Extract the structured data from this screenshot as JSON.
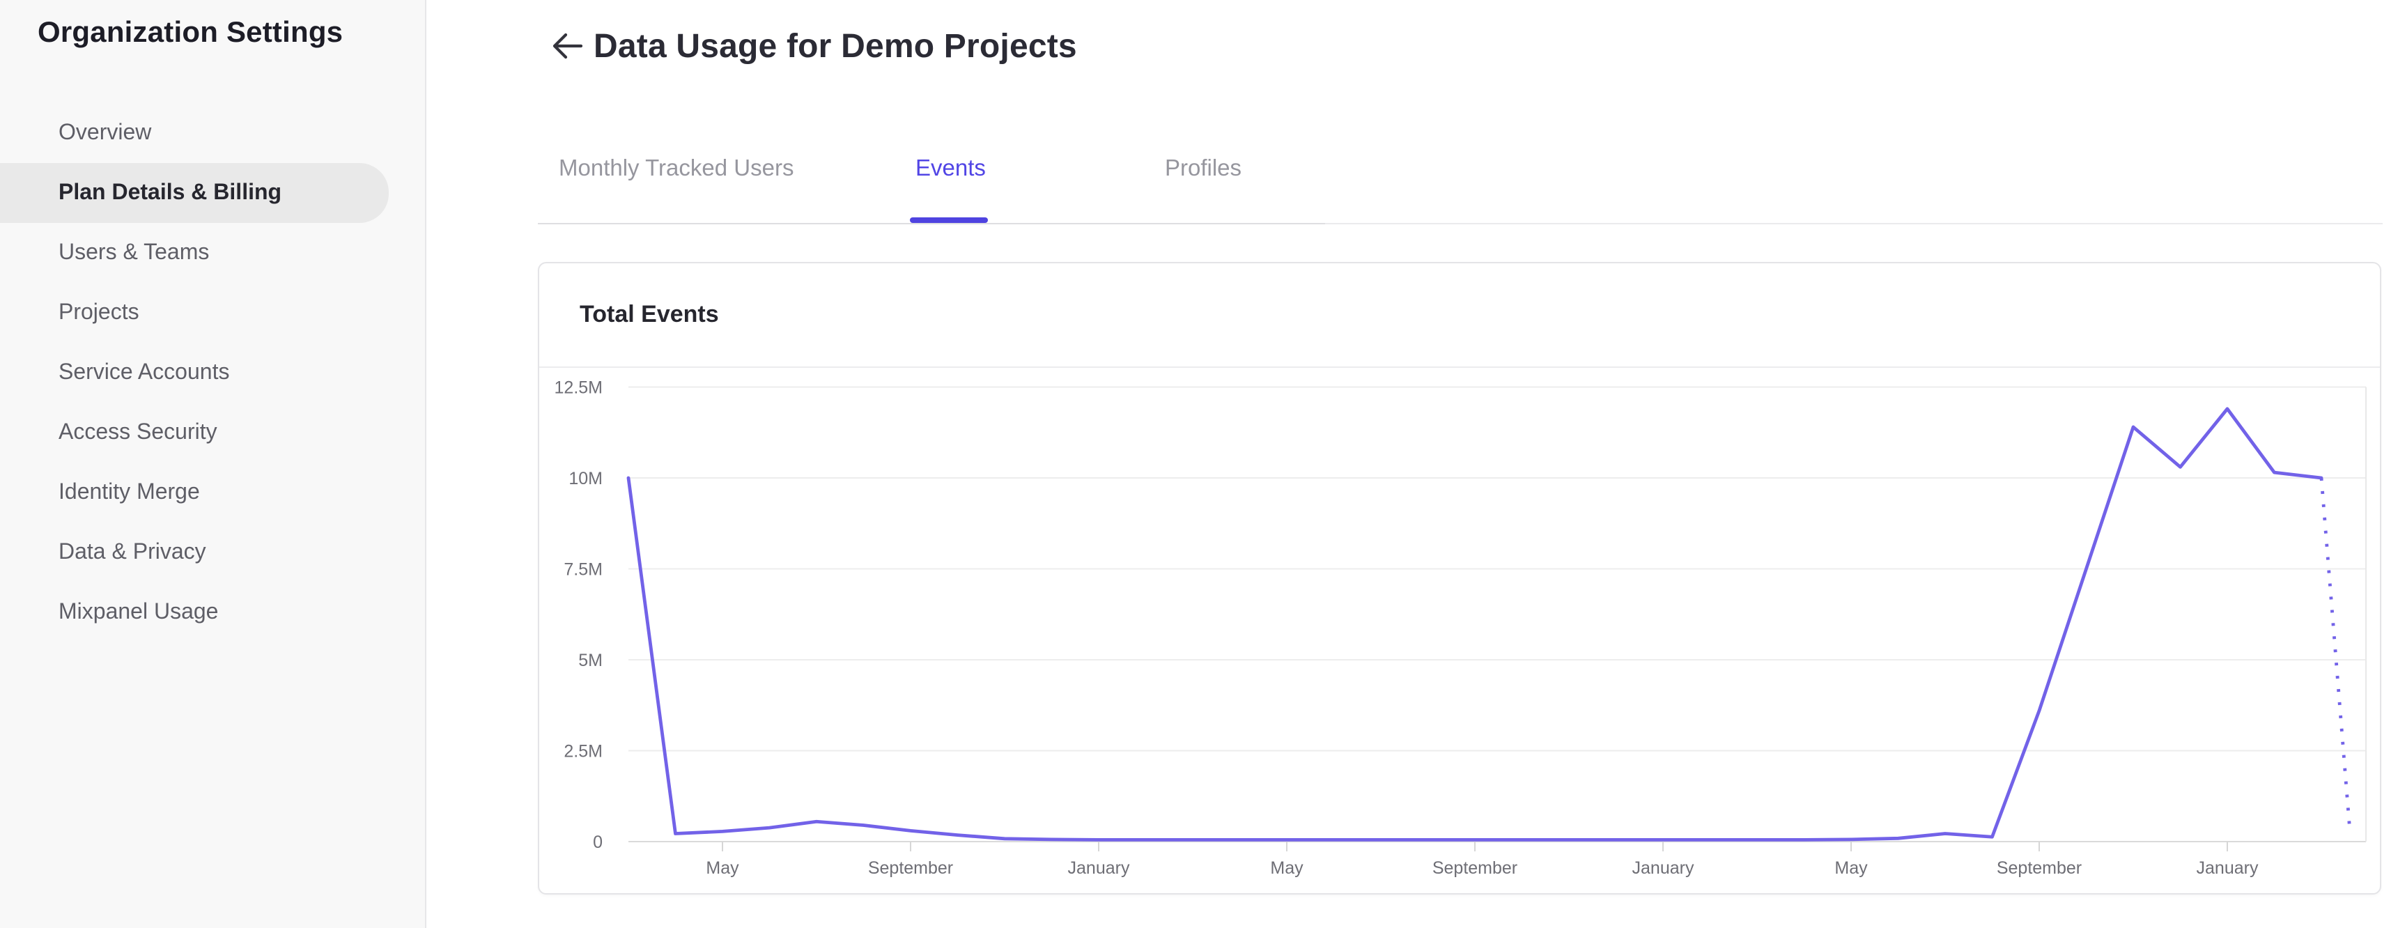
{
  "sidebar": {
    "title": "Organization Settings",
    "items": [
      {
        "label": "Overview",
        "selected": false
      },
      {
        "label": "Plan Details & Billing",
        "selected": true
      },
      {
        "label": "Users & Teams",
        "selected": false
      },
      {
        "label": "Projects",
        "selected": false
      },
      {
        "label": "Service Accounts",
        "selected": false
      },
      {
        "label": "Access Security",
        "selected": false
      },
      {
        "label": "Identity Merge",
        "selected": false
      },
      {
        "label": "Data & Privacy",
        "selected": false
      },
      {
        "label": "Mixpanel Usage",
        "selected": false
      }
    ]
  },
  "header": {
    "title": "Data Usage for Demo Projects",
    "back_icon": "left-arrow-icon"
  },
  "tabs": [
    {
      "label": "Monthly Tracked Users",
      "active": false
    },
    {
      "label": "Events",
      "active": true
    },
    {
      "label": "Profiles",
      "active": false
    }
  ],
  "card": {
    "title": "Total Events"
  },
  "colors": {
    "accent": "#4f43e0",
    "active_tab_text": "#5145e5",
    "line": "#7262e8",
    "sidebar_selected_bg": "#e9e9e9",
    "gridline": "#ededed",
    "axis_line": "#dadada",
    "axis_label": "#6e6e75"
  },
  "chart_data": {
    "type": "line",
    "title": "Total Events",
    "xlabel": "",
    "ylabel": "",
    "ylim": [
      0,
      12500000
    ],
    "grid": true,
    "legend": "none",
    "y_tick_labels": [
      "12.5M",
      "10M",
      "7.5M",
      "5M",
      "2.5M",
      "0"
    ],
    "y_tick_values_millions": [
      12.5,
      10,
      7.5,
      5,
      2.5,
      0
    ],
    "x_tick_labels": [
      "May",
      "September",
      "January",
      "May",
      "September",
      "January",
      "May",
      "September",
      "January"
    ],
    "x_tick_month_indices": [
      2,
      6,
      10,
      14,
      18,
      22,
      26,
      30,
      34
    ],
    "series": [
      {
        "name": "Total Events",
        "unit": "events",
        "cadence": "monthly",
        "points_monthly_millions": [
          10,
          0.22,
          0.28,
          0.38,
          0.55,
          0.45,
          0.3,
          0.18,
          0.08,
          0.06,
          0.05,
          0.05,
          0.05,
          0.05,
          0.05,
          0.05,
          0.05,
          0.05,
          0.05,
          0.05,
          0.05,
          0.05,
          0.05,
          0.05,
          0.05,
          0.05,
          0.06,
          0.09,
          0.22,
          0.13,
          3.6,
          7.5,
          11.4,
          10.3,
          11.9,
          10.15,
          10.0
        ],
        "projection_point": {
          "month_index": 36.6,
          "value_millions": 0.4,
          "style": "dotted"
        }
      }
    ]
  }
}
